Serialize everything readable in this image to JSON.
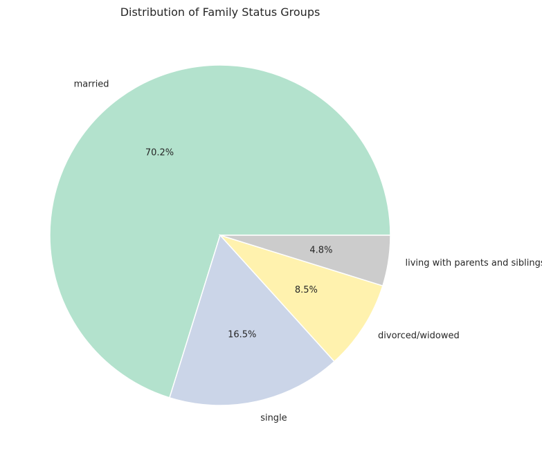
{
  "chart_data": {
    "type": "pie",
    "title": "Distribution of Family Status Groups",
    "labels": [
      "married",
      "single",
      "divorced/widowed",
      "living with parents and siblings"
    ],
    "values": [
      70.2,
      16.5,
      8.5,
      4.8
    ],
    "pct_labels": [
      "70.2%",
      "16.5%",
      "8.5%",
      "4.8%"
    ],
    "colors": [
      "#b3e2cd",
      "#cbd5e8",
      "#fff2ae",
      "#cccccc"
    ],
    "start_angle": "3 o'clock",
    "direction": "counterclockwise",
    "legend": "none"
  }
}
